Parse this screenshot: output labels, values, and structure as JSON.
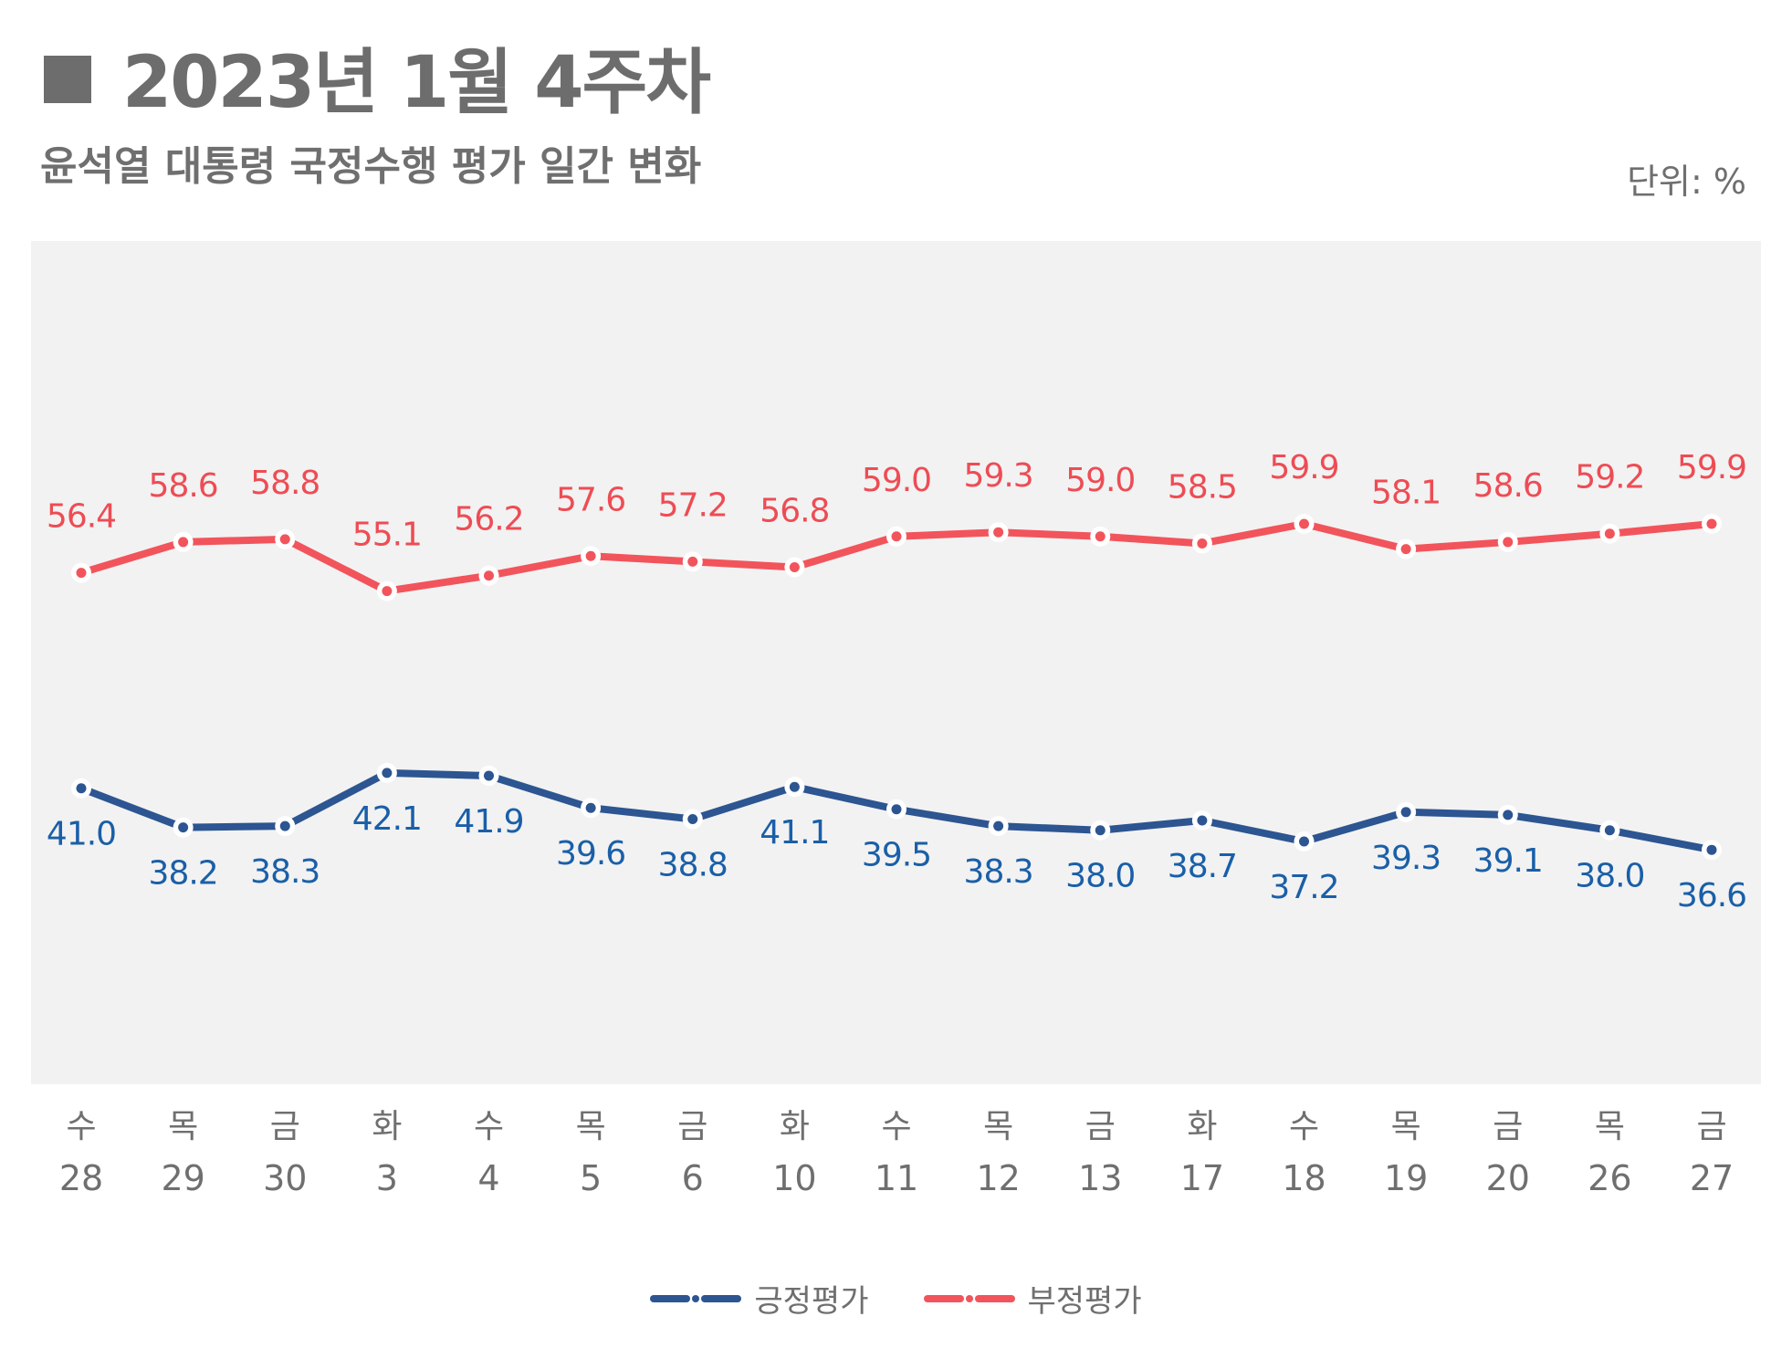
{
  "header": {
    "title": "2023년 1월 4주차",
    "subtitle": "윤석열 대통령 국정수행 평가 일간 변화",
    "unit": "단위: %"
  },
  "colors": {
    "positive": "#2c5591",
    "negative": "#f2545b",
    "positive_label": "#1a5fa8",
    "negative_label": "#ee4c54",
    "plot_bg": "#f2f2f2"
  },
  "chart_data": {
    "type": "line",
    "title": "윤석열 대통령 국정수행 평가 일간 변화",
    "ylabel": "단위: %",
    "ylim": [
      30,
      65
    ],
    "categories": [
      {
        "day": "수",
        "date": "28"
      },
      {
        "day": "목",
        "date": "29"
      },
      {
        "day": "금",
        "date": "30"
      },
      {
        "day": "화",
        "date": "3"
      },
      {
        "day": "수",
        "date": "4"
      },
      {
        "day": "목",
        "date": "5"
      },
      {
        "day": "금",
        "date": "6"
      },
      {
        "day": "화",
        "date": "10"
      },
      {
        "day": "수",
        "date": "11"
      },
      {
        "day": "목",
        "date": "12"
      },
      {
        "day": "금",
        "date": "13"
      },
      {
        "day": "화",
        "date": "17"
      },
      {
        "day": "수",
        "date": "18"
      },
      {
        "day": "목",
        "date": "19"
      },
      {
        "day": "금",
        "date": "20"
      },
      {
        "day": "목",
        "date": "26"
      },
      {
        "day": "금",
        "date": "27"
      }
    ],
    "series": [
      {
        "name": "긍정평가",
        "key": "positive",
        "values": [
          41.0,
          38.2,
          38.3,
          42.1,
          41.9,
          39.6,
          38.8,
          41.1,
          39.5,
          38.3,
          38.0,
          38.7,
          37.2,
          39.3,
          39.1,
          38.0,
          36.6
        ],
        "labels": [
          "41.0",
          "38.2",
          "38.3",
          "42.1",
          "41.9",
          "39.6",
          "38.8",
          "41.1",
          "39.5",
          "38.3",
          "38.0",
          "38.7",
          "37.2",
          "39.3",
          "39.1",
          "38.0",
          "36.6"
        ]
      },
      {
        "name": "부정평가",
        "key": "negative",
        "values": [
          56.4,
          58.6,
          58.8,
          55.1,
          56.2,
          57.6,
          57.2,
          56.8,
          59.0,
          59.3,
          59.0,
          58.5,
          59.9,
          58.1,
          58.6,
          59.2,
          59.9
        ],
        "labels": [
          "56.4",
          "58.6",
          "58.8",
          "55.1",
          "56.2",
          "57.6",
          "57.2",
          "56.8",
          "59.0",
          "59.3",
          "59.0",
          "58.5",
          "59.9",
          "58.1",
          "58.6",
          "59.2",
          "59.9"
        ]
      }
    ],
    "legend": {
      "position": "bottom-center",
      "items": [
        "긍정평가",
        "부정평가"
      ]
    }
  }
}
